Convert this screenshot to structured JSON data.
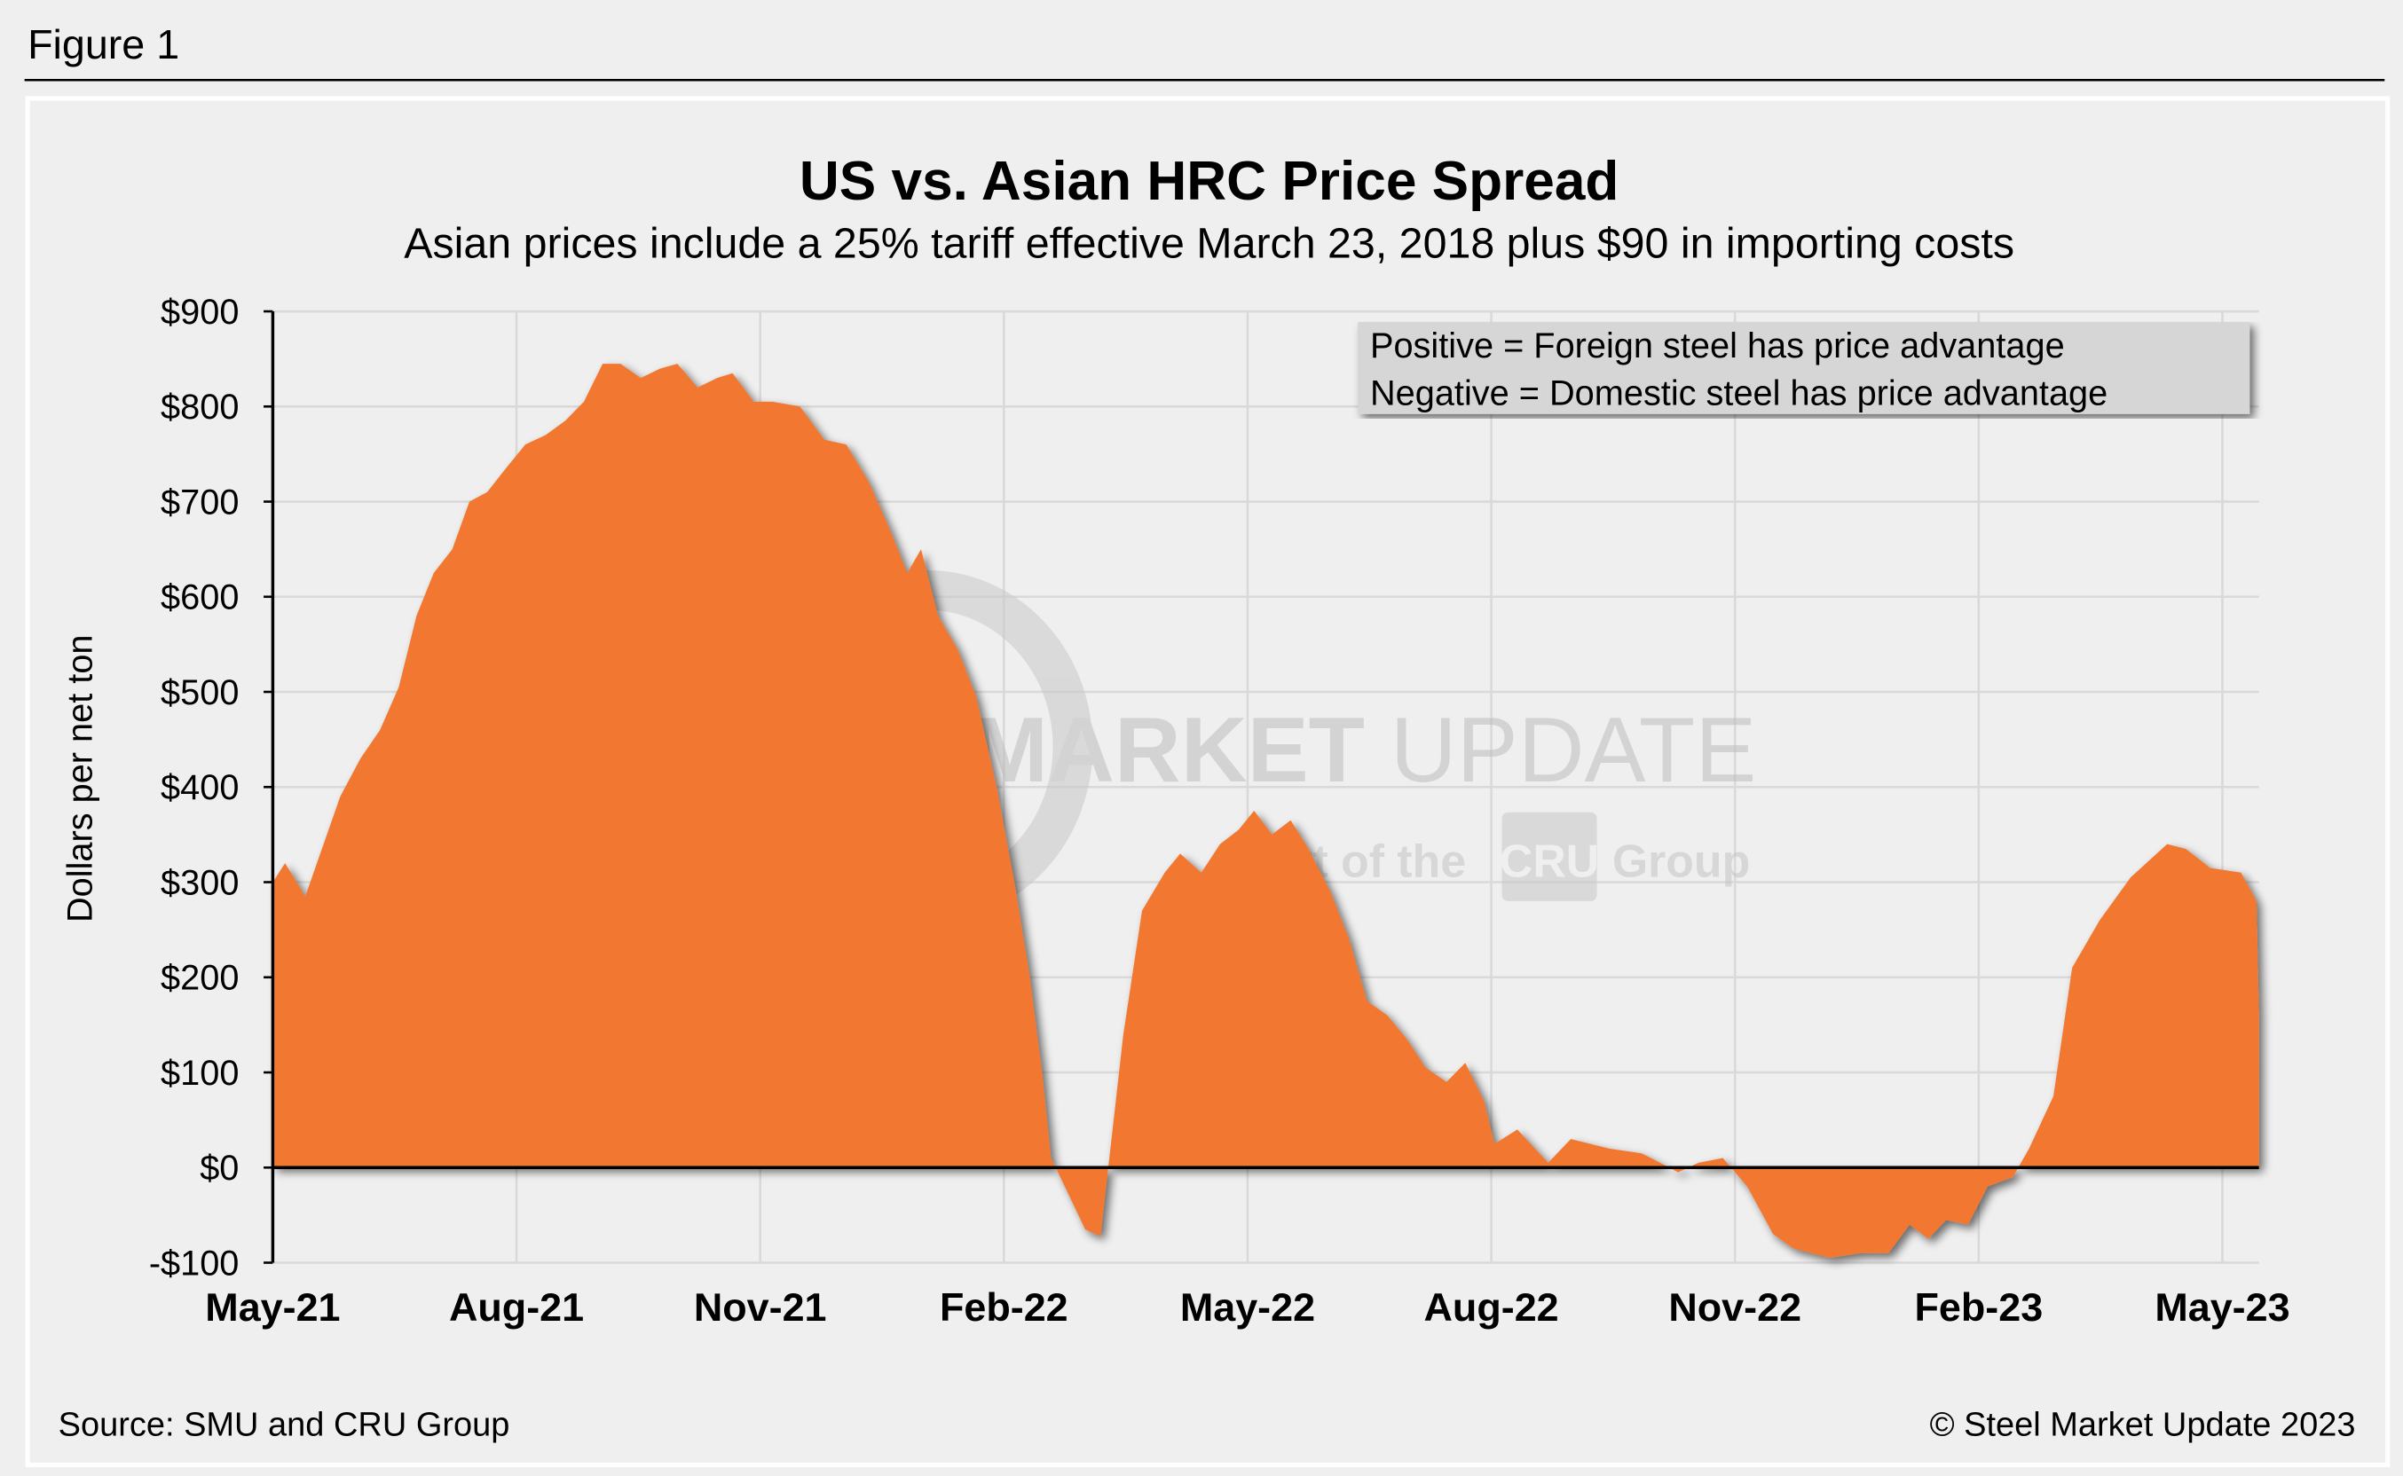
{
  "figure_label": "Figure 1",
  "source": "Source: SMU and CRU Group",
  "copyright": "© Steel Market Update 2023",
  "watermark": {
    "line1_bold": "STEEL MARKET",
    "line1_light": "UPDATE",
    "line2_pre": "part of the",
    "line2_logo": "CRU",
    "line2_post": "Group"
  },
  "legend": {
    "line1": "Positive = Foreign steel has price advantage",
    "line2": "Negative = Domestic steel has price advantage"
  },
  "colors": {
    "fill": "#F27830",
    "background": "#EFEFEF",
    "grid": "#D9D9D9",
    "legend_bg": "#D6D6D6"
  },
  "chart_data": {
    "type": "area",
    "title": "US vs. Asian HRC Price Spread",
    "subtitle": "Asian prices include a 25% tariff effective March 23, 2018 plus $90 in importing costs",
    "xlabel": "",
    "ylabel": "Dollars per net ton",
    "x_units": "months since May-21",
    "xlim": [
      0,
      24.45
    ],
    "ylim": [
      -100,
      900
    ],
    "grid": true,
    "x_ticks": [
      {
        "value": 0,
        "label": "May-21"
      },
      {
        "value": 3,
        "label": "Aug-21"
      },
      {
        "value": 6,
        "label": "Nov-21"
      },
      {
        "value": 9,
        "label": "Feb-22"
      },
      {
        "value": 12,
        "label": "May-22"
      },
      {
        "value": 15,
        "label": "Aug-22"
      },
      {
        "value": 18,
        "label": "Nov-22"
      },
      {
        "value": 21,
        "label": "Feb-23"
      },
      {
        "value": 24,
        "label": "May-23"
      }
    ],
    "y_ticks": [
      {
        "value": 900,
        "label": "$900"
      },
      {
        "value": 800,
        "label": "$800"
      },
      {
        "value": 700,
        "label": "$700"
      },
      {
        "value": 600,
        "label": "$600"
      },
      {
        "value": 500,
        "label": "$500"
      },
      {
        "value": 400,
        "label": "$400"
      },
      {
        "value": 300,
        "label": "$300"
      },
      {
        "value": 200,
        "label": "$200"
      },
      {
        "value": 100,
        "label": "$100"
      },
      {
        "value": 0,
        "label": "$0"
      },
      {
        "value": -100,
        "label": "-$100"
      }
    ],
    "series": [
      {
        "name": "US vs. Asian HRC spread",
        "x": [
          0,
          0.15,
          0.4,
          0.83,
          1.08,
          1.32,
          1.55,
          1.77,
          1.98,
          2.21,
          2.42,
          2.64,
          2.87,
          3.11,
          3.36,
          3.6,
          3.83,
          4.06,
          4.28,
          4.53,
          4.77,
          4.98,
          5.23,
          5.47,
          5.66,
          5.92,
          6.15,
          6.49,
          6.79,
          7.06,
          7.34,
          7.6,
          7.81,
          7.98,
          8.19,
          8.43,
          8.66,
          8.91,
          9.13,
          9.32,
          9.47,
          9.58,
          9.75,
          10.0,
          10.19,
          10.47,
          10.7,
          10.98,
          11.17,
          11.43,
          11.66,
          11.89,
          12.08,
          12.3,
          12.53,
          12.75,
          13.02,
          13.25,
          13.47,
          13.72,
          13.96,
          14.19,
          14.45,
          14.68,
          14.91,
          15.04,
          15.32,
          15.7,
          15.98,
          16.45,
          16.85,
          17.08,
          17.3,
          17.55,
          17.85,
          18.15,
          18.47,
          18.72,
          19.17,
          19.55,
          19.89,
          20.15,
          20.38,
          20.6,
          20.87,
          21.11,
          21.42,
          21.62,
          21.92,
          22.15,
          22.49,
          22.87,
          23.32,
          23.55,
          23.85,
          24.23,
          24.42,
          24.45
        ],
        "values": [
          300,
          320,
          285,
          390,
          430,
          460,
          505,
          580,
          625,
          650,
          700,
          710,
          735,
          760,
          770,
          785,
          805,
          845,
          845,
          830,
          840,
          845,
          820,
          830,
          835,
          805,
          805,
          800,
          765,
          760,
          720,
          670,
          625,
          650,
          580,
          545,
          495,
          400,
          300,
          200,
          100,
          10,
          -20,
          -65,
          -72,
          140,
          270,
          310,
          330,
          310,
          340,
          355,
          375,
          350,
          365,
          335,
          290,
          240,
          175,
          160,
          135,
          105,
          90,
          110,
          70,
          25,
          40,
          5,
          30,
          20,
          15,
          5,
          -5,
          5,
          10,
          -20,
          -70,
          -85,
          -95,
          -90,
          -90,
          -60,
          -75,
          -55,
          -60,
          -20,
          -10,
          20,
          75,
          210,
          260,
          305,
          340,
          335,
          315,
          310,
          280,
          160
        ]
      }
    ]
  }
}
